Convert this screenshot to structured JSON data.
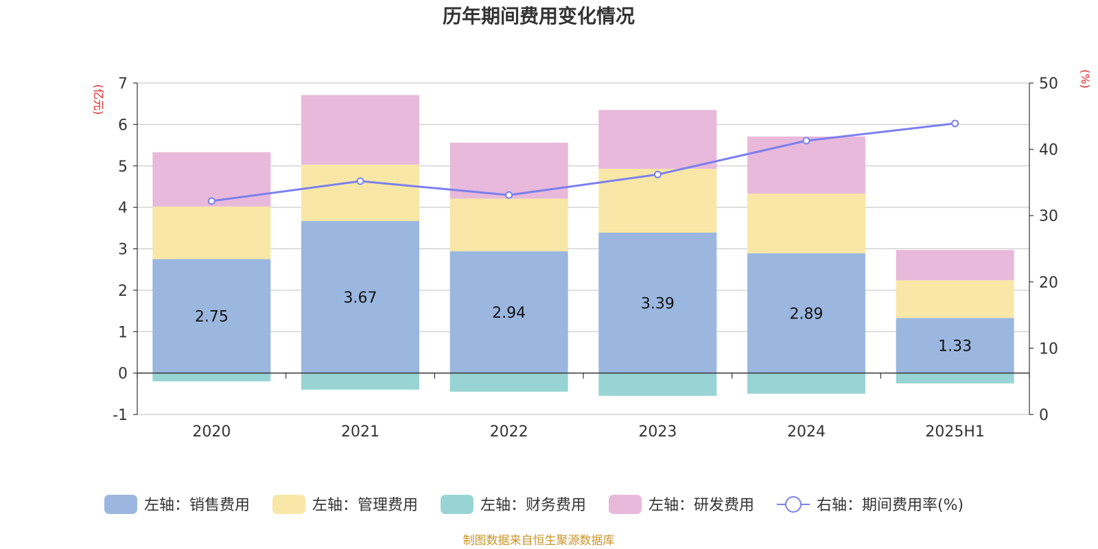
{
  "chart_data": {
    "type": "bar",
    "title": "历年期间费用变化情况",
    "left_unit": "(亿元)",
    "right_unit": "(%)",
    "categories": [
      "2020",
      "2021",
      "2022",
      "2023",
      "2024",
      "2025H1"
    ],
    "left_axis": {
      "ylim": [
        -1,
        7
      ],
      "ticks": [
        -1,
        0,
        1,
        2,
        3,
        4,
        5,
        6,
        7
      ]
    },
    "right_axis": {
      "ylim": [
        0,
        50
      ],
      "ticks": [
        0,
        10,
        20,
        30,
        40,
        50
      ]
    },
    "series": [
      {
        "name": "左轴：销售费用",
        "axis": "left",
        "kind": "bar",
        "color": "#9bb7e0",
        "values": [
          2.75,
          3.67,
          2.94,
          3.39,
          2.89,
          1.33
        ],
        "labels_shown": true
      },
      {
        "name": "左轴：管理费用",
        "axis": "left",
        "kind": "bar",
        "color": "#f8e7a6",
        "values": [
          1.27,
          1.36,
          1.27,
          1.54,
          1.44,
          0.91
        ]
      },
      {
        "name": "左轴：财务费用",
        "axis": "left",
        "kind": "bar",
        "color": "#99d4d4",
        "values": [
          -0.2,
          -0.4,
          -0.45,
          -0.55,
          -0.5,
          -0.25
        ]
      },
      {
        "name": "左轴：研发费用",
        "axis": "left",
        "kind": "bar",
        "color": "#e8b9da",
        "values": [
          1.31,
          1.68,
          1.35,
          1.42,
          1.38,
          0.73
        ]
      },
      {
        "name": "右轴：期间费用率(%)",
        "axis": "right",
        "kind": "line",
        "color": "#7b7ff0",
        "values": [
          32.2,
          35.2,
          33.1,
          36.2,
          41.3,
          43.9
        ]
      }
    ],
    "grid": true,
    "legend_position": "bottom"
  },
  "source_note": "制图数据来自恒生聚源数据库"
}
